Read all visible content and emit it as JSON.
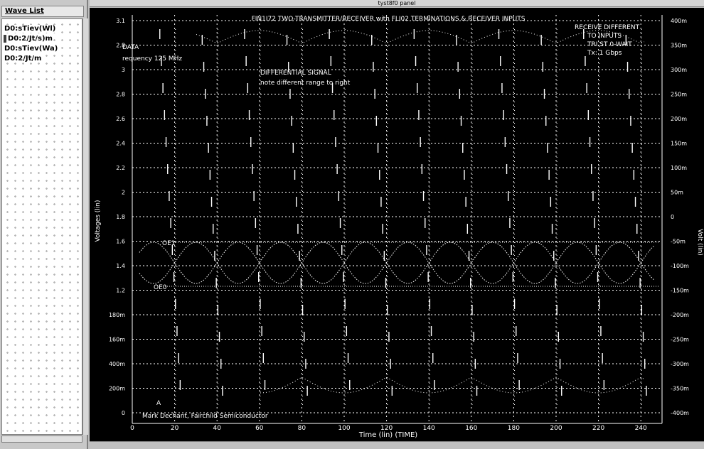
{
  "window": {
    "title": "tyst8f0 panel"
  },
  "sidebar": {
    "title": "Wave List",
    "items": [
      {
        "label": "D0:sTiev(Wl)",
        "selected": false
      },
      {
        "label": "D0:2/Jt/s)m",
        "selected": true
      },
      {
        "label": "D0:sTiev(Wa)",
        "selected": false
      },
      {
        "label": "D0:2/Jt/m",
        "selected": false
      }
    ]
  },
  "chart_data": {
    "type": "line",
    "title": "FIN1I72 TWO-TRANSMITTER/RECEIVER with FLI02 TERMINATIONS & RECEIVER INPUTS",
    "left_axis": {
      "label": "Voltages (lin)",
      "ticks": [
        "3.1",
        "2.8",
        "3",
        "2.8",
        "2.6",
        "2.4",
        "2.2",
        "2",
        "1.8",
        "1.6",
        "1.4",
        "1.2",
        "180m",
        "160m",
        "400m",
        "200m",
        "0"
      ]
    },
    "right_axis": {
      "label": "Volt (lin)",
      "ticks": [
        "400m",
        "350m",
        "300m",
        "250m",
        "200m",
        "150m",
        "100m",
        "50m",
        "0",
        "-50m",
        "-100m",
        "-150m",
        "-200m",
        "-250m",
        "-300m",
        "-350m",
        "-400m"
      ]
    },
    "x_axis": {
      "label": "Time (lin) (TIME)",
      "ticks": [
        "0",
        "20",
        "40",
        "60",
        "80",
        "100",
        "120",
        "140",
        "160",
        "180",
        "200",
        "220",
        "240"
      ],
      "xlim": [
        0,
        250
      ]
    },
    "annotations": {
      "left_top": "DATA",
      "left_frequency": "requency 125 MHz",
      "center_note_1": "DIFFERENTIAL SIGNAL",
      "center_note_2": "note different range to right",
      "right_note_1": "RECEIVE DIFFERENT",
      "right_note_2": "TO INPUTS",
      "right_note_3": "TRI ST 0-WAIT",
      "right_note_4": "Tx: 1 Gbps",
      "trace_label_hi": "OE1",
      "trace_label_lo": "OE0",
      "credit": "Mark Dechant, Fairchild Semiconductor",
      "origin_marker": "A"
    },
    "clock_x": [
      13,
      33,
      53,
      73,
      93,
      113,
      133,
      153,
      173,
      193,
      213,
      233
    ],
    "diff_crossings": [
      30,
      60,
      80,
      100,
      120,
      150,
      180,
      200,
      230
    ],
    "grid": true,
    "legend": "none"
  },
  "colors": {
    "plot_bg": "#000000",
    "grid": "#ffffff",
    "trace": "#ffffff"
  }
}
